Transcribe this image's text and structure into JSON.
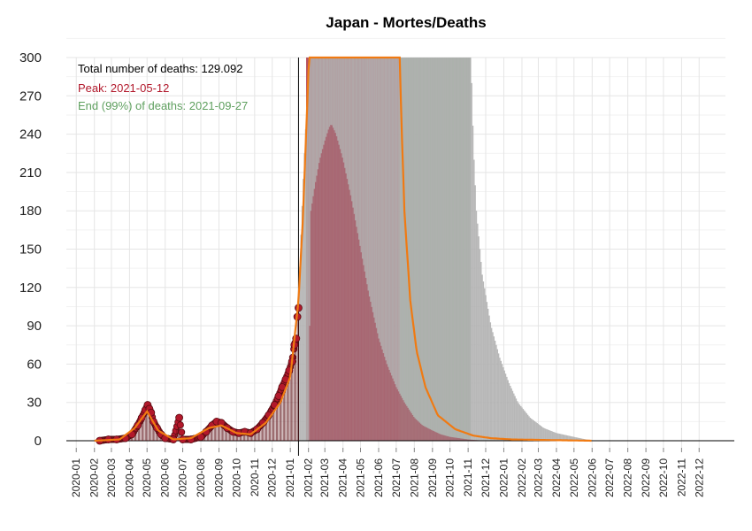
{
  "chart_data": {
    "type": "bar",
    "title": "Japan - Mortes/Deaths",
    "xlabel": "",
    "ylabel": "",
    "ylim": [
      0,
      300
    ],
    "yticks": [
      0,
      30,
      60,
      90,
      120,
      150,
      180,
      210,
      240,
      270,
      300
    ],
    "xrange": [
      "2019-12-15",
      "2023-01-15"
    ],
    "xtick_labels": [
      "2020-01",
      "2020-02",
      "2020-03",
      "2020-04",
      "2020-05",
      "2020-06",
      "2020-07",
      "2020-08",
      "2020-09",
      "2020-10",
      "2020-11",
      "2020-12",
      "2021-01",
      "2021-02",
      "2021-03",
      "2021-04",
      "2021-05",
      "2021-06",
      "2021-07",
      "2021-08",
      "2021-09",
      "2021-10",
      "2021-11",
      "2021-12",
      "2022-01",
      "2022-02",
      "2022-03",
      "2022-04",
      "2022-05",
      "2022-06",
      "2022-07",
      "2022-08",
      "2022-09",
      "2022-10",
      "2022-11",
      "2022-12"
    ],
    "current_date": "2021-01-15",
    "grid": true,
    "annotations": {
      "total": "Total number of deaths: 129.092",
      "peak": "Peak: 2021-05-12",
      "end": "End (99%) of deaths: 2021-09-27"
    },
    "series": [
      {
        "kind": "observed-daily-deaths",
        "points": [
          [
            "2020-02-10",
            0
          ],
          [
            "2020-02-25",
            1
          ],
          [
            "2020-03-10",
            1
          ],
          [
            "2020-03-25",
            2
          ],
          [
            "2020-04-05",
            5
          ],
          [
            "2020-04-15",
            12
          ],
          [
            "2020-04-22",
            18
          ],
          [
            "2020-04-28",
            24
          ],
          [
            "2020-05-02",
            28
          ],
          [
            "2020-05-05",
            25
          ],
          [
            "2020-05-08",
            22
          ],
          [
            "2020-05-12",
            15
          ],
          [
            "2020-05-18",
            10
          ],
          [
            "2020-05-25",
            5
          ],
          [
            "2020-06-01",
            2
          ],
          [
            "2020-06-15",
            1
          ],
          [
            "2020-06-25",
            18
          ],
          [
            "2020-07-01",
            1
          ],
          [
            "2020-07-15",
            1
          ],
          [
            "2020-08-01",
            3
          ],
          [
            "2020-08-10",
            7
          ],
          [
            "2020-08-20",
            12
          ],
          [
            "2020-08-28",
            15
          ],
          [
            "2020-09-05",
            14
          ],
          [
            "2020-09-15",
            10
          ],
          [
            "2020-09-25",
            7
          ],
          [
            "2020-10-05",
            6
          ],
          [
            "2020-10-15",
            7
          ],
          [
            "2020-10-25",
            6
          ],
          [
            "2020-11-05",
            9
          ],
          [
            "2020-11-15",
            14
          ],
          [
            "2020-11-25",
            20
          ],
          [
            "2020-12-05",
            28
          ],
          [
            "2020-12-12",
            35
          ],
          [
            "2020-12-18",
            42
          ],
          [
            "2020-12-24",
            48
          ],
          [
            "2020-12-30",
            55
          ],
          [
            "2021-01-04",
            62
          ],
          [
            "2021-01-08",
            75
          ],
          [
            "2021-01-11",
            80
          ],
          [
            "2021-01-13",
            97
          ],
          [
            "2021-01-15",
            104
          ]
        ]
      },
      {
        "kind": "fitted-curve",
        "points": [
          [
            "2020-02-01",
            0
          ],
          [
            "2020-03-15",
            1
          ],
          [
            "2020-04-10",
            10
          ],
          [
            "2020-05-01",
            23
          ],
          [
            "2020-05-20",
            8
          ],
          [
            "2020-06-15",
            1
          ],
          [
            "2020-07-15",
            2
          ],
          [
            "2020-08-15",
            10
          ],
          [
            "2020-09-05",
            12
          ],
          [
            "2020-10-01",
            6
          ],
          [
            "2020-10-25",
            5
          ],
          [
            "2020-11-20",
            14
          ],
          [
            "2020-12-15",
            30
          ],
          [
            "2021-01-01",
            50
          ],
          [
            "2021-01-15",
            110
          ],
          [
            "2021-01-22",
            170
          ],
          [
            "2021-01-28",
            240
          ],
          [
            "2021-02-01",
            290
          ],
          [
            "2021-02-03",
            300
          ],
          [
            "2021-07-07",
            300
          ],
          [
            "2021-07-10",
            250
          ],
          [
            "2021-07-15",
            180
          ],
          [
            "2021-07-25",
            110
          ],
          [
            "2021-08-05",
            70
          ],
          [
            "2021-08-20",
            42
          ],
          [
            "2021-09-10",
            20
          ],
          [
            "2021-10-10",
            9
          ],
          [
            "2021-11-10",
            4
          ],
          [
            "2021-12-10",
            2
          ],
          [
            "2022-01-15",
            1
          ],
          [
            "2022-06-01",
            0
          ]
        ]
      },
      {
        "kind": "projection-band",
        "points": [
          [
            "2021-01-15",
            108
          ],
          [
            "2021-01-18",
            150
          ],
          [
            "2021-01-22",
            195
          ],
          [
            "2021-01-26",
            235
          ],
          [
            "2021-01-30",
            270
          ],
          [
            "2021-02-02",
            300
          ],
          [
            "2021-11-05",
            300
          ],
          [
            "2021-11-07",
            280
          ],
          [
            "2021-11-10",
            230
          ],
          [
            "2021-11-15",
            180
          ],
          [
            "2021-11-25",
            130
          ],
          [
            "2021-12-10",
            90
          ],
          [
            "2021-12-25",
            65
          ],
          [
            "2022-01-10",
            45
          ],
          [
            "2022-01-25",
            30
          ],
          [
            "2022-02-15",
            18
          ],
          [
            "2022-03-10",
            10
          ],
          [
            "2022-04-01",
            6
          ],
          [
            "2022-05-01",
            3
          ],
          [
            "2022-06-01",
            0
          ]
        ]
      },
      {
        "kind": "central-estimate-bars",
        "points": [
          [
            "2021-02-01",
            0
          ],
          [
            "2021-02-05",
            180
          ],
          [
            "2021-02-12",
            200
          ],
          [
            "2021-02-20",
            220
          ],
          [
            "2021-03-01",
            235
          ],
          [
            "2021-03-08",
            245
          ],
          [
            "2021-03-12",
            248
          ],
          [
            "2021-03-20",
            240
          ],
          [
            "2021-04-01",
            220
          ],
          [
            "2021-04-15",
            190
          ],
          [
            "2021-05-01",
            150
          ],
          [
            "2021-05-15",
            115
          ],
          [
            "2021-06-01",
            80
          ],
          [
            "2021-06-15",
            60
          ],
          [
            "2021-07-01",
            42
          ],
          [
            "2021-07-15",
            30
          ],
          [
            "2021-08-01",
            18
          ],
          [
            "2021-08-15",
            12
          ],
          [
            "2021-09-01",
            8
          ],
          [
            "2021-09-15",
            5
          ],
          [
            "2021-10-01",
            3
          ],
          [
            "2021-11-01",
            1
          ],
          [
            "2021-12-01",
            0
          ]
        ]
      }
    ],
    "bands": [
      {
        "kind": "rise-region",
        "from": "2021-01-28",
        "to": "2021-05-12"
      },
      {
        "kind": "peak-region",
        "from": "2021-01-28",
        "to": "2021-07-07"
      },
      {
        "kind": "end-region",
        "from": "2021-07-07",
        "to": "2021-11-05"
      }
    ],
    "colors": {
      "background": "#ffffff",
      "grid": "#e5e5e5",
      "observed_fill": "#b2182b",
      "observed_stroke": "#5a0c12",
      "fit_line": "#f07a12",
      "projection": "#b0b0b0",
      "rise_band": "#dc7880",
      "peak_band": "#b04c5c",
      "end_band": "#8cae8e",
      "peak_text": "#b2182b",
      "end_text": "#5fa05f"
    }
  }
}
